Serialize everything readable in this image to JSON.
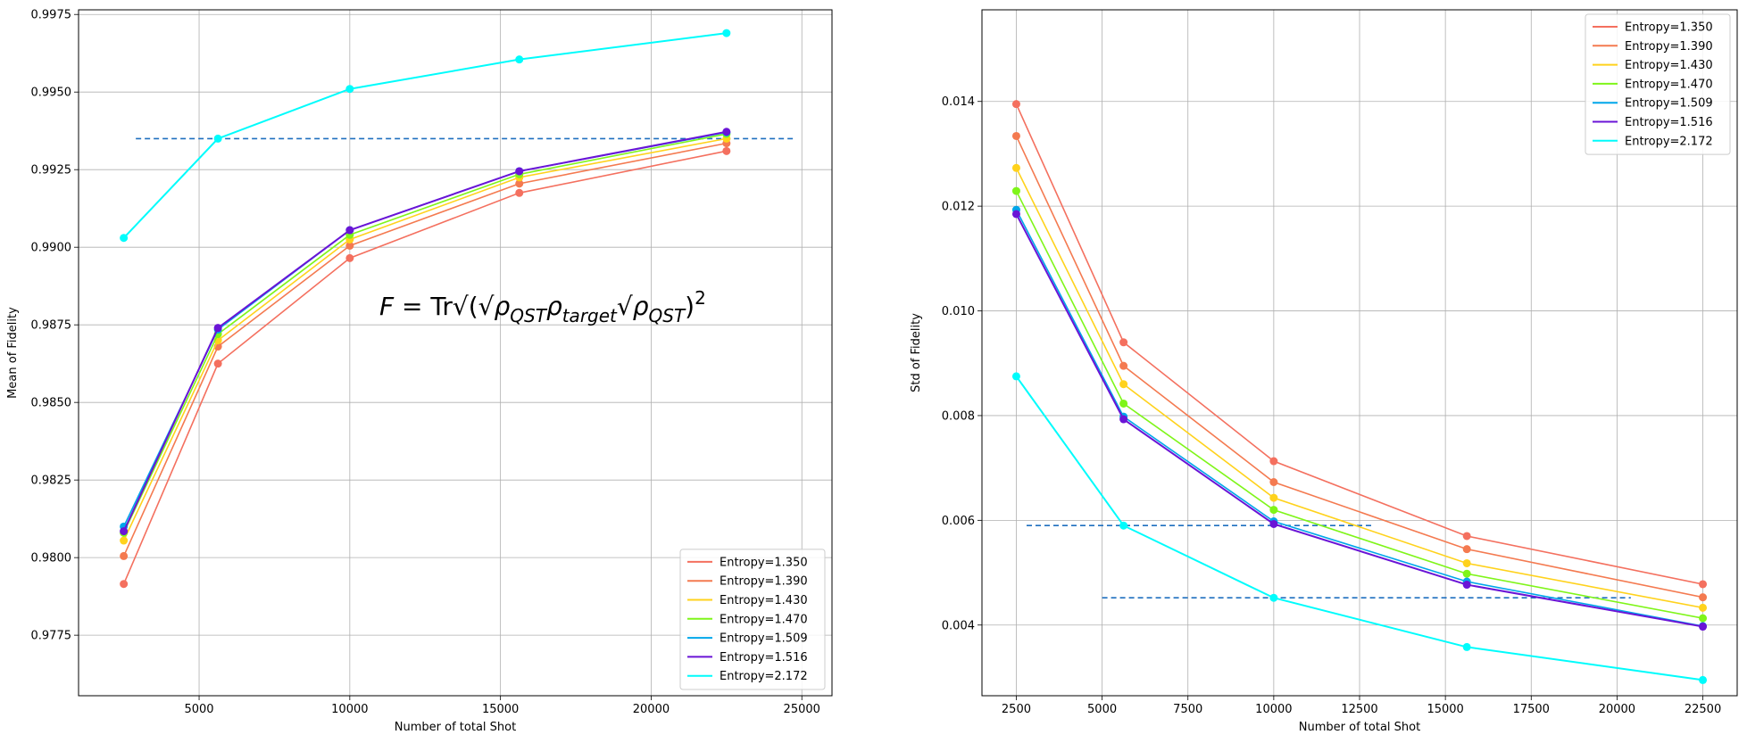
{
  "chart_data": [
    {
      "type": "line",
      "xlabel": "Number of total Shot",
      "ylabel": "Mean of Fidelity",
      "xlim": [
        1000,
        26000
      ],
      "ylim": [
        0.97555,
        0.99765
      ],
      "xticks": [
        5000,
        10000,
        15000,
        20000,
        25000
      ],
      "yticks": [
        0.9775,
        0.98,
        0.9825,
        0.985,
        0.9875,
        0.99,
        0.9925,
        0.995,
        0.9975
      ],
      "ytick_labels": [
        "0.9775",
        "0.9800",
        "0.9825",
        "0.9850",
        "0.9875",
        "0.9900",
        "0.9925",
        "0.9950",
        "0.9975"
      ],
      "grid": true,
      "legend_position": "bottom-right",
      "annotation": "F = Tr√(√ρQST ρtarget √ρQST)²",
      "x": [
        2500,
        5625,
        10000,
        15625,
        22500
      ],
      "series": [
        {
          "name": "Entropy=1.350",
          "color": "#f4705f",
          "values": [
            0.97915,
            0.98625,
            0.98965,
            0.99175,
            0.9931
          ]
        },
        {
          "name": "Entropy=1.390",
          "color": "#f47a50",
          "values": [
            0.98005,
            0.9868,
            0.99005,
            0.99205,
            0.99335
          ]
        },
        {
          "name": "Entropy=1.430",
          "color": "#ffd21c",
          "values": [
            0.98055,
            0.987,
            0.99025,
            0.99225,
            0.9935
          ]
        },
        {
          "name": "Entropy=1.470",
          "color": "#7ff519",
          "values": [
            0.9808,
            0.9872,
            0.9904,
            0.99235,
            0.99365
          ]
        },
        {
          "name": "Entropy=1.509",
          "color": "#00a6ea",
          "values": [
            0.981,
            0.98735,
            0.99055,
            0.99245,
            0.9937
          ]
        },
        {
          "name": "Entropy=1.516",
          "color": "#6a14d6",
          "values": [
            0.98085,
            0.9874,
            0.99055,
            0.99245,
            0.99372
          ]
        },
        {
          "name": "Entropy=2.172",
          "color": "#00fcfc",
          "values": [
            0.9903,
            0.9935,
            0.9951,
            0.99605,
            0.9969
          ]
        }
      ],
      "reference_lines": [
        {
          "y": 0.9935,
          "x_start": 2900,
          "x_end": 24700,
          "color": "#1f6fbf"
        }
      ]
    },
    {
      "type": "line",
      "xlabel": "Number of total Shot",
      "ylabel": "Std of Fidelity",
      "xlim": [
        1500,
        23500
      ],
      "ylim": [
        0.00265,
        0.01575
      ],
      "xticks": [
        2500,
        5000,
        7500,
        10000,
        12500,
        15000,
        17500,
        20000,
        22500
      ],
      "yticks": [
        0.004,
        0.006,
        0.008,
        0.01,
        0.012,
        0.014
      ],
      "ytick_labels": [
        "0.004",
        "0.006",
        "0.008",
        "0.010",
        "0.012",
        "0.014"
      ],
      "grid": true,
      "legend_position": "top-right",
      "x": [
        2500,
        5625,
        10000,
        15625,
        22500
      ],
      "series": [
        {
          "name": "Entropy=1.350",
          "color": "#f4705f",
          "values": [
            0.01395,
            0.0094,
            0.00713,
            0.0057,
            0.00478
          ]
        },
        {
          "name": "Entropy=1.390",
          "color": "#f47a50",
          "values": [
            0.01334,
            0.00895,
            0.00673,
            0.00545,
            0.00453
          ]
        },
        {
          "name": "Entropy=1.430",
          "color": "#ffd21c",
          "values": [
            0.01273,
            0.0086,
            0.00643,
            0.00518,
            0.00433
          ]
        },
        {
          "name": "Entropy=1.470",
          "color": "#7ff519",
          "values": [
            0.01229,
            0.00823,
            0.0062,
            0.00498,
            0.00413
          ]
        },
        {
          "name": "Entropy=1.509",
          "color": "#00a6ea",
          "values": [
            0.01193,
            0.00798,
            0.00598,
            0.00483,
            0.00398
          ]
        },
        {
          "name": "Entropy=1.516",
          "color": "#6a14d6",
          "values": [
            0.01185,
            0.00793,
            0.00593,
            0.00477,
            0.00397
          ]
        },
        {
          "name": "Entropy=2.172",
          "color": "#00fcfc",
          "values": [
            0.00875,
            0.0059,
            0.00452,
            0.00358,
            0.00295
          ]
        }
      ],
      "reference_lines": [
        {
          "y": 0.0059,
          "x_start": 2800,
          "x_end": 12900,
          "color": "#1f6fbf"
        },
        {
          "y": 0.00452,
          "x_start": 5000,
          "x_end": 20400,
          "color": "#1f6fbf"
        }
      ]
    }
  ]
}
